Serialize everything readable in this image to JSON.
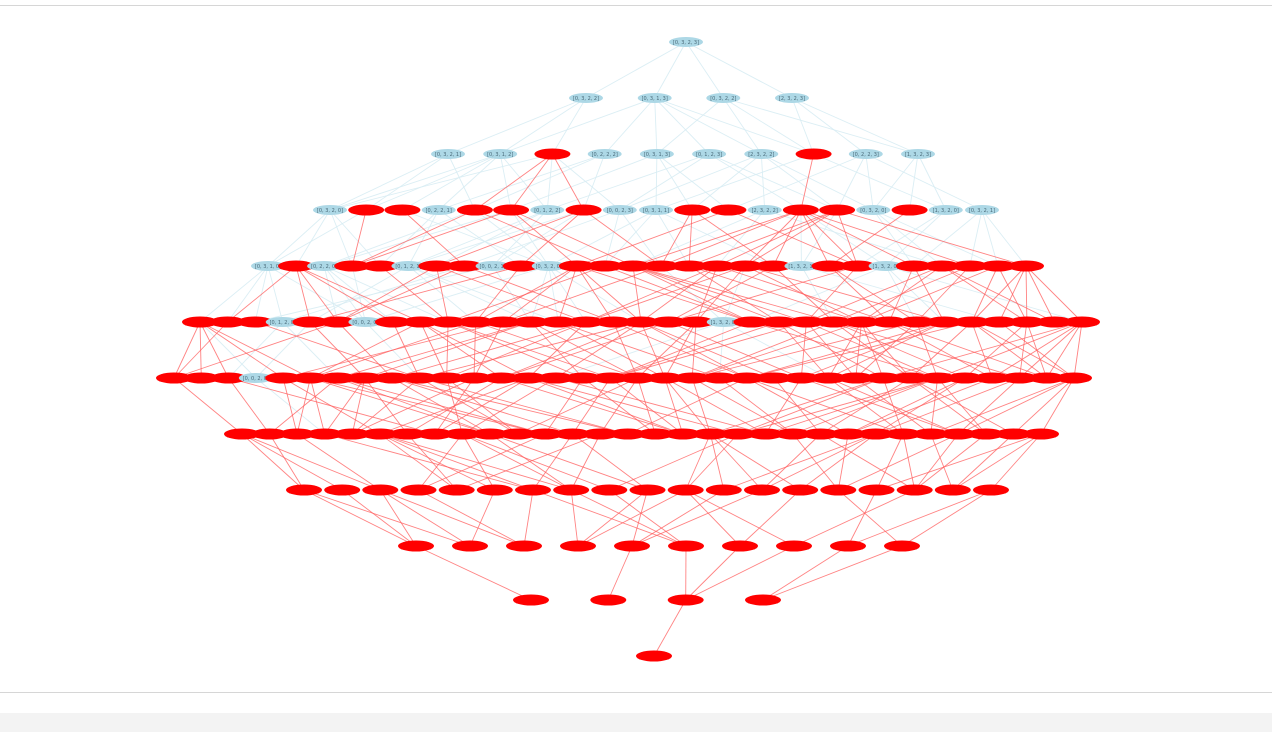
{
  "colors": {
    "unselected_node": "#add8e6",
    "selected_node": "#ff0000",
    "unselected_edge": "#d7ecf3",
    "selected_edge": "#ff5a5a",
    "label_text": "#4a6b7a"
  },
  "diagram": {
    "type": "lattice-graph",
    "levels": [
      [
        {
          "label": "[0, 3, 2, 3]",
          "sel": false
        }
      ],
      [
        {
          "label": "[0, 3, 2, 2]",
          "sel": false
        },
        {
          "label": "[0, 3, 1, 3]",
          "sel": false
        },
        {
          "label": "[0, 3, 2, 2]",
          "sel": false
        },
        {
          "label": "[2, 3, 2, 3]",
          "sel": false
        }
      ],
      [
        {
          "label": "[0, 3, 2, 1]",
          "sel": false
        },
        {
          "label": "[0, 3, 1, 2]",
          "sel": false
        },
        {
          "label": "",
          "sel": true
        },
        {
          "label": "[0, 2, 2, 2]",
          "sel": false
        },
        {
          "label": "[0, 3, 1, 3]",
          "sel": false
        },
        {
          "label": "[0, 1, 2, 3]",
          "sel": false
        },
        {
          "label": "[2, 3, 2, 2]",
          "sel": false
        },
        {
          "label": "",
          "sel": true
        },
        {
          "label": "[0, 2, 2, 3]",
          "sel": false
        },
        {
          "label": "[1, 3, 2, 3]",
          "sel": false
        }
      ],
      [
        {
          "label": "[0, 3, 2, 0]",
          "sel": false
        },
        {
          "label": "",
          "sel": true
        },
        {
          "label": "",
          "sel": true
        },
        {
          "label": "[0, 2, 2, 1]",
          "sel": false
        },
        {
          "label": "",
          "sel": true
        },
        {
          "label": "",
          "sel": true
        },
        {
          "label": "[0, 1, 2, 2]",
          "sel": false
        },
        {
          "label": "",
          "sel": true
        },
        {
          "label": "[0, 0, 2, 3]",
          "sel": false
        },
        {
          "label": "[0, 3, 1, 1]",
          "sel": false
        },
        {
          "label": "",
          "sel": true
        },
        {
          "label": "",
          "sel": true
        },
        {
          "label": "[2, 3, 2, 2]",
          "sel": false
        },
        {
          "label": "",
          "sel": true
        },
        {
          "label": "",
          "sel": true
        },
        {
          "label": "[0, 3, 2, 0]",
          "sel": false
        },
        {
          "label": "",
          "sel": true
        },
        {
          "label": "[1, 3, 2, 0]",
          "sel": false
        },
        {
          "label": "[0, 3, 2, 1]",
          "sel": false
        }
      ],
      [
        {
          "label": "[0, 3, 1, 0]",
          "sel": false
        },
        {
          "label": "",
          "sel": true
        },
        {
          "label": "[0, 2, 2, 0]",
          "sel": false
        },
        {
          "label": "",
          "sel": true
        },
        {
          "label": "",
          "sel": true
        },
        {
          "label": "[0, 1, 2, 1]",
          "sel": false
        },
        {
          "label": "",
          "sel": true
        },
        {
          "label": "",
          "sel": true
        },
        {
          "label": "[0, 0, 2, 1]",
          "sel": false
        },
        {
          "label": "",
          "sel": true
        },
        {
          "label": "[0, 3, 2, 0]",
          "sel": false
        },
        {
          "label": "",
          "sel": true
        },
        {
          "label": "",
          "sel": true
        },
        {
          "label": "",
          "sel": true
        },
        {
          "label": "",
          "sel": true
        },
        {
          "label": "",
          "sel": true
        },
        {
          "label": "",
          "sel": true
        },
        {
          "label": "",
          "sel": true
        },
        {
          "label": "",
          "sel": true
        },
        {
          "label": "[1, 3, 2, 1]",
          "sel": false
        },
        {
          "label": "",
          "sel": true
        },
        {
          "label": "",
          "sel": true
        },
        {
          "label": "[1, 3, 2, 0]",
          "sel": false
        },
        {
          "label": "",
          "sel": true
        },
        {
          "label": "",
          "sel": true
        },
        {
          "label": "",
          "sel": true
        },
        {
          "label": "",
          "sel": true
        },
        {
          "label": "",
          "sel": true
        }
      ],
      [
        {
          "label": "",
          "sel": true
        },
        {
          "label": "",
          "sel": true
        },
        {
          "label": "",
          "sel": true
        },
        {
          "label": "[0, 1, 2, 0]",
          "sel": false
        },
        {
          "label": "",
          "sel": true
        },
        {
          "label": "",
          "sel": true
        },
        {
          "label": "[0, 0, 2, 0]",
          "sel": false
        },
        {
          "label": "",
          "sel": true
        },
        {
          "label": "",
          "sel": true
        },
        {
          "label": "",
          "sel": true
        },
        {
          "label": "",
          "sel": true
        },
        {
          "label": "",
          "sel": true
        },
        {
          "label": "",
          "sel": true
        },
        {
          "label": "",
          "sel": true
        },
        {
          "label": "",
          "sel": true
        },
        {
          "label": "",
          "sel": true
        },
        {
          "label": "",
          "sel": true
        },
        {
          "label": "",
          "sel": true
        },
        {
          "label": "",
          "sel": true
        },
        {
          "label": "[1, 3, 2, 0]",
          "sel": false
        },
        {
          "label": "",
          "sel": true
        },
        {
          "label": "",
          "sel": true
        },
        {
          "label": "",
          "sel": true
        },
        {
          "label": "",
          "sel": true
        },
        {
          "label": "",
          "sel": true
        },
        {
          "label": "",
          "sel": true
        },
        {
          "label": "",
          "sel": true
        },
        {
          "label": "",
          "sel": true
        },
        {
          "label": "",
          "sel": true
        },
        {
          "label": "",
          "sel": true
        },
        {
          "label": "",
          "sel": true
        },
        {
          "label": "",
          "sel": true
        },
        {
          "label": "",
          "sel": true
        }
      ],
      [
        {
          "label": "",
          "sel": true
        },
        {
          "label": "",
          "sel": true
        },
        {
          "label": "",
          "sel": true
        },
        {
          "label": "[0, 0, 2, 0]",
          "sel": false
        },
        {
          "label": "",
          "sel": true
        },
        {
          "label": "",
          "sel": true
        },
        {
          "label": "",
          "sel": true
        },
        {
          "label": "",
          "sel": true
        },
        {
          "label": "",
          "sel": true
        },
        {
          "label": "",
          "sel": true
        },
        {
          "label": "",
          "sel": true
        },
        {
          "label": "",
          "sel": true
        },
        {
          "label": "",
          "sel": true
        },
        {
          "label": "",
          "sel": true
        },
        {
          "label": "",
          "sel": true
        },
        {
          "label": "",
          "sel": true
        },
        {
          "label": "",
          "sel": true
        },
        {
          "label": "",
          "sel": true
        },
        {
          "label": "",
          "sel": true
        },
        {
          "label": "",
          "sel": true
        },
        {
          "label": "",
          "sel": true
        },
        {
          "label": "",
          "sel": true
        },
        {
          "label": "",
          "sel": true
        },
        {
          "label": "",
          "sel": true
        },
        {
          "label": "",
          "sel": true
        },
        {
          "label": "",
          "sel": true
        },
        {
          "label": "",
          "sel": true
        },
        {
          "label": "",
          "sel": true
        },
        {
          "label": "",
          "sel": true
        },
        {
          "label": "",
          "sel": true
        },
        {
          "label": "",
          "sel": true
        },
        {
          "label": "",
          "sel": true
        },
        {
          "label": "",
          "sel": true
        },
        {
          "label": "",
          "sel": true
        }
      ],
      [
        {
          "label": "",
          "sel": true
        },
        {
          "label": "",
          "sel": true
        },
        {
          "label": "",
          "sel": true
        },
        {
          "label": "",
          "sel": true
        },
        {
          "label": "",
          "sel": true
        },
        {
          "label": "",
          "sel": true
        },
        {
          "label": "",
          "sel": true
        },
        {
          "label": "",
          "sel": true
        },
        {
          "label": "",
          "sel": true
        },
        {
          "label": "",
          "sel": true
        },
        {
          "label": "",
          "sel": true
        },
        {
          "label": "",
          "sel": true
        },
        {
          "label": "",
          "sel": true
        },
        {
          "label": "",
          "sel": true
        },
        {
          "label": "",
          "sel": true
        },
        {
          "label": "",
          "sel": true
        },
        {
          "label": "",
          "sel": true
        },
        {
          "label": "",
          "sel": true
        },
        {
          "label": "",
          "sel": true
        },
        {
          "label": "",
          "sel": true
        },
        {
          "label": "",
          "sel": true
        },
        {
          "label": "",
          "sel": true
        },
        {
          "label": "",
          "sel": true
        },
        {
          "label": "",
          "sel": true
        },
        {
          "label": "",
          "sel": true
        },
        {
          "label": "",
          "sel": true
        },
        {
          "label": "",
          "sel": true
        },
        {
          "label": "",
          "sel": true
        },
        {
          "label": "",
          "sel": true
        },
        {
          "label": "",
          "sel": true
        }
      ],
      [
        {
          "label": "",
          "sel": true
        },
        {
          "label": "",
          "sel": true
        },
        {
          "label": "",
          "sel": true
        },
        {
          "label": "",
          "sel": true
        },
        {
          "label": "",
          "sel": true
        },
        {
          "label": "",
          "sel": true
        },
        {
          "label": "",
          "sel": true
        },
        {
          "label": "",
          "sel": true
        },
        {
          "label": "",
          "sel": true
        },
        {
          "label": "",
          "sel": true
        },
        {
          "label": "",
          "sel": true
        },
        {
          "label": "",
          "sel": true
        },
        {
          "label": "",
          "sel": true
        },
        {
          "label": "",
          "sel": true
        },
        {
          "label": "",
          "sel": true
        },
        {
          "label": "",
          "sel": true
        },
        {
          "label": "",
          "sel": true
        },
        {
          "label": "",
          "sel": true
        },
        {
          "label": "",
          "sel": true
        }
      ],
      [
        {
          "label": "",
          "sel": true
        },
        {
          "label": "",
          "sel": true
        },
        {
          "label": "",
          "sel": true
        },
        {
          "label": "",
          "sel": true
        },
        {
          "label": "",
          "sel": true
        },
        {
          "label": "",
          "sel": true
        },
        {
          "label": "",
          "sel": true
        },
        {
          "label": "",
          "sel": true
        },
        {
          "label": "",
          "sel": true
        },
        {
          "label": "",
          "sel": true
        }
      ],
      [
        {
          "label": "",
          "sel": true
        },
        {
          "label": "",
          "sel": true
        },
        {
          "label": "",
          "sel": true
        },
        {
          "label": "",
          "sel": true
        }
      ],
      [
        {
          "label": "",
          "sel": true
        }
      ]
    ]
  }
}
